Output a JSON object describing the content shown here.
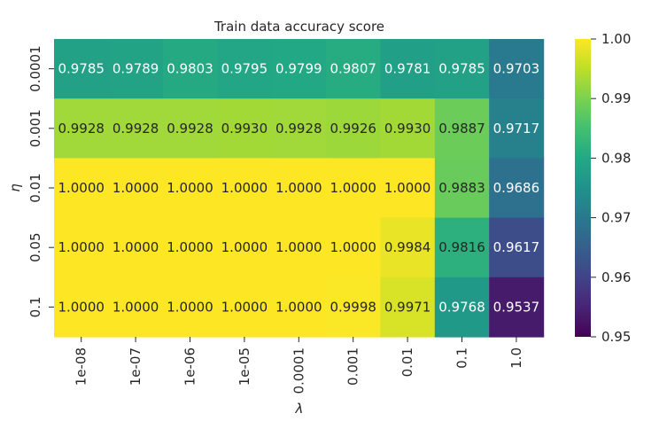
{
  "chart_data": {
    "type": "heatmap",
    "title": "Train data accuracy score",
    "xlabel": "λ",
    "ylabel": "η",
    "x_categories": [
      "1e-08",
      "1e-07",
      "1e-06",
      "1e-05",
      "0.0001",
      "0.001",
      "0.01",
      "0.1",
      "1.0"
    ],
    "y_categories": [
      "0.0001",
      "0.001",
      "0.01",
      "0.05",
      "0.1"
    ],
    "values": [
      [
        0.9785,
        0.9789,
        0.9803,
        0.9795,
        0.9799,
        0.9807,
        0.9781,
        0.9785,
        0.9703
      ],
      [
        0.9928,
        0.9928,
        0.9928,
        0.993,
        0.9928,
        0.9926,
        0.993,
        0.9887,
        0.9717
      ],
      [
        1.0,
        1.0,
        1.0,
        1.0,
        1.0,
        1.0,
        1.0,
        0.9883,
        0.9686
      ],
      [
        1.0,
        1.0,
        1.0,
        1.0,
        1.0,
        1.0,
        0.9984,
        0.9816,
        0.9617
      ],
      [
        1.0,
        1.0,
        1.0,
        1.0,
        1.0,
        0.9998,
        0.9971,
        0.9768,
        0.9537
      ]
    ],
    "value_format_decimals": 4,
    "colormap": "viridis",
    "vmin": 0.95,
    "vmax": 1.0,
    "colorbar_ticks": [
      "0.95",
      "0.96",
      "0.97",
      "0.98",
      "0.99",
      "1.00"
    ],
    "colorbar_tick_values": [
      0.95,
      0.96,
      0.97,
      0.98,
      0.99,
      1.0
    ],
    "text_color_dark": "#262626",
    "text_color_light": "#ffffff",
    "axis_text_color": "#262626",
    "grid": false,
    "legend": "colorbar-right"
  }
}
